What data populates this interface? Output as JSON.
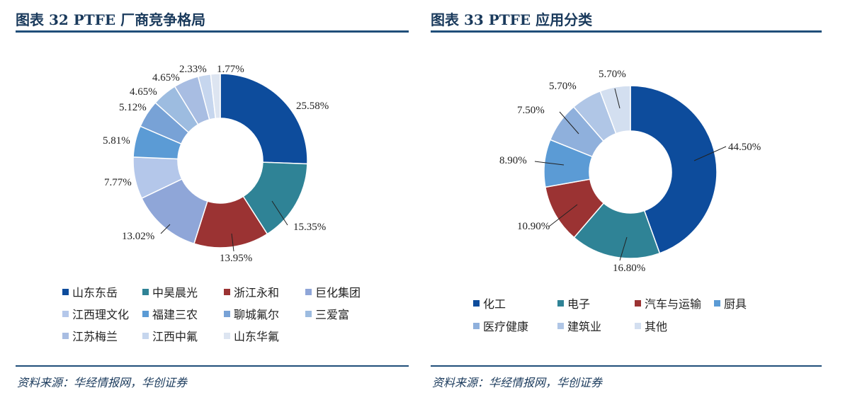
{
  "chart_data": [
    {
      "type": "pie",
      "donut": true,
      "title": "图表 32 PTFE 厂商竞争格局",
      "source": "资料来源：华经情报网，华创证券",
      "categories": [
        "山东东岳",
        "中昊晨光",
        "浙江永和",
        "巨化集团",
        "江西理文化",
        "福建三农",
        "聊城氟尔",
        "三爱富",
        "江苏梅兰",
        "江西中氟",
        "山东华氟"
      ],
      "values": [
        25.58,
        15.35,
        13.95,
        13.02,
        7.77,
        5.81,
        5.12,
        4.65,
        4.65,
        2.33,
        1.77
      ],
      "labels": [
        "25.58%",
        "15.35%",
        "13.95%",
        "13.02%",
        "7.77%",
        "5.81%",
        "5.12%",
        "4.65%",
        "4.65%",
        "2.33%",
        "1.77%"
      ],
      "colors": [
        "#0d4c9c",
        "#2f8396",
        "#9b3333",
        "#8fa6d8",
        "#b4c7ea",
        "#5b9bd5",
        "#78a2d6",
        "#9dbce0",
        "#a8bde2",
        "#c6d6ee",
        "#dde5f1"
      ],
      "legend_placement": "bottom"
    },
    {
      "type": "pie",
      "donut": true,
      "title": "图表 33 PTFE 应用分类",
      "source": "资料来源：华经情报网，华创证券",
      "categories": [
        "化工",
        "电子",
        "汽车与运输",
        "厨具",
        "医疗健康",
        "建筑业",
        "其他"
      ],
      "values": [
        44.5,
        16.8,
        10.9,
        8.9,
        7.5,
        5.7,
        5.7
      ],
      "labels": [
        "44.50%",
        "16.80%",
        "10.90%",
        "8.90%",
        "7.50%",
        "5.70%",
        "5.70%"
      ],
      "colors": [
        "#0d4c9c",
        "#2f8396",
        "#9b3333",
        "#5b9bd5",
        "#8fb0dc",
        "#b0c6e6",
        "#d3dff0"
      ],
      "legend_placement": "bottom"
    }
  ]
}
